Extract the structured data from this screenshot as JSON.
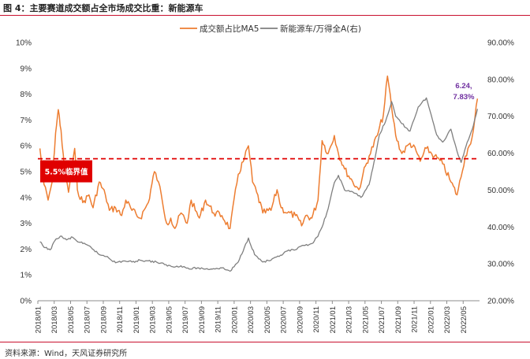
{
  "title": "图 4：主要赛道成交额占全市场成交比重：新能源车",
  "source": "资料来源：Wind，天风证券研究所",
  "chart_data": {
    "type": "line",
    "legend": [
      "成交额占比MA5",
      "新能源车/万得全A(右)"
    ],
    "colors": {
      "turnover_share": "#ed7d31",
      "nev_ratio": "#7f7f7f",
      "threshold": "#e00000",
      "annotation": "#7030a0"
    },
    "y_left": {
      "min": 0,
      "max": 10,
      "ticks": [
        "0%",
        "1%",
        "2%",
        "3%",
        "4%",
        "5%",
        "6%",
        "7%",
        "8%",
        "9%",
        "10%"
      ]
    },
    "y_right": {
      "min": 20,
      "max": 90,
      "ticks": [
        "20.00%",
        "30.00%",
        "40.00%",
        "50.00%",
        "60.00%",
        "70.00%",
        "80.00%",
        "90.00%"
      ]
    },
    "x_ticks": [
      "2018/01",
      "2018/03",
      "2018/05",
      "2018/07",
      "2018/09",
      "2018/11",
      "2019/01",
      "2019/03",
      "2019/05",
      "2019/07",
      "2019/09",
      "2019/11",
      "2020/01",
      "2020/03",
      "2020/05",
      "2020/07",
      "2020/09",
      "2020/11",
      "2021/01",
      "2021/03",
      "2021/05",
      "2021/07",
      "2021/09",
      "2021/11",
      "2022/01",
      "2022/03",
      "2022/05"
    ],
    "threshold": {
      "value": 5.5,
      "label": "5.5%临界值"
    },
    "annotation": {
      "line1": "6.24,",
      "line2": "7.83%"
    },
    "series": [
      {
        "name": "成交额占比MA5",
        "axis": "left",
        "points": [
          [
            "2018/01",
            5.9
          ],
          [
            "2018/01",
            4.5
          ],
          [
            "2018/02",
            3.9
          ],
          [
            "2018/02",
            4.6
          ],
          [
            "2018/03",
            6.5
          ],
          [
            "2018/03",
            7.4
          ],
          [
            "2018/03",
            6.6
          ],
          [
            "2018/04",
            5.0
          ],
          [
            "2018/04",
            4.2
          ],
          [
            "2018/05",
            5.2
          ],
          [
            "2018/05",
            5.9
          ],
          [
            "2018/05",
            4.3
          ],
          [
            "2018/06",
            3.8
          ],
          [
            "2018/07",
            4.1
          ],
          [
            "2018/07",
            3.6
          ],
          [
            "2018/08",
            4.6
          ],
          [
            "2018/09",
            4.1
          ],
          [
            "2018/09",
            3.5
          ],
          [
            "2018/10",
            3.6
          ],
          [
            "2018/11",
            3.3
          ],
          [
            "2018/11",
            3.9
          ],
          [
            "2018/12",
            3.5
          ],
          [
            "2019/01",
            3.2
          ],
          [
            "2019/02",
            3.8
          ],
          [
            "2019/03",
            5.0
          ],
          [
            "2019/03",
            4.6
          ],
          [
            "2019/04",
            3.8
          ],
          [
            "2019/04",
            3.0
          ],
          [
            "2019/05",
            3.2
          ],
          [
            "2019/05",
            2.8
          ],
          [
            "2019/06",
            3.4
          ],
          [
            "2019/07",
            3.0
          ],
          [
            "2019/07",
            3.9
          ],
          [
            "2019/08",
            3.5
          ],
          [
            "2019/08",
            3.2
          ],
          [
            "2019/09",
            3.9
          ],
          [
            "2019/10",
            3.4
          ],
          [
            "2019/11",
            3.3
          ],
          [
            "2019/12",
            2.8
          ],
          [
            "2020/01",
            4.9
          ],
          [
            "2020/02",
            5.5
          ],
          [
            "2020/02",
            6.0
          ],
          [
            "2020/03",
            4.6
          ],
          [
            "2020/03",
            4.2
          ],
          [
            "2020/04",
            3.4
          ],
          [
            "2020/05",
            3.5
          ],
          [
            "2020/06",
            4.3
          ],
          [
            "2020/06",
            3.6
          ],
          [
            "2020/07",
            3.4
          ],
          [
            "2020/08",
            3.3
          ],
          [
            "2020/09",
            2.9
          ],
          [
            "2020/09",
            3.3
          ],
          [
            "2020/10",
            3.2
          ],
          [
            "2020/11",
            3.9
          ],
          [
            "2020/11",
            6.2
          ],
          [
            "2020/12",
            5.7
          ],
          [
            "2021/01",
            6.4
          ],
          [
            "2021/01",
            5.7
          ],
          [
            "2021/02",
            5.1
          ],
          [
            "2021/03",
            4.6
          ],
          [
            "2021/04",
            4.3
          ],
          [
            "2021/04",
            4.9
          ],
          [
            "2021/05",
            5.6
          ],
          [
            "2021/06",
            6.4
          ],
          [
            "2021/07",
            7.2
          ],
          [
            "2021/07",
            8.7
          ],
          [
            "2021/08",
            7.5
          ],
          [
            "2021/08",
            6.4
          ],
          [
            "2021/09",
            5.7
          ],
          [
            "2021/10",
            6.1
          ],
          [
            "2021/11",
            5.8
          ],
          [
            "2021/11",
            5.4
          ],
          [
            "2021/12",
            5.9
          ],
          [
            "2022/01",
            5.6
          ],
          [
            "2022/02",
            5.3
          ],
          [
            "2022/03",
            4.6
          ],
          [
            "2022/04",
            4.1
          ],
          [
            "2022/04",
            4.8
          ],
          [
            "2022/05",
            5.6
          ],
          [
            "2022/05",
            6.0
          ],
          [
            "2022/06",
            6.6
          ],
          [
            "2022/06",
            7.83
          ]
        ]
      },
      {
        "name": "新能源车/万得全A(右)",
        "axis": "right",
        "points": [
          [
            "2018/01",
            36.0
          ],
          [
            "2018/01",
            34.5
          ],
          [
            "2018/02",
            33.8
          ],
          [
            "2018/03",
            36.8
          ],
          [
            "2018/03",
            37.5
          ],
          [
            "2018/04",
            36.5
          ],
          [
            "2018/05",
            37.2
          ],
          [
            "2018/05",
            36.2
          ],
          [
            "2018/06",
            35.5
          ],
          [
            "2018/07",
            34.5
          ],
          [
            "2018/08",
            32.5
          ],
          [
            "2018/09",
            32.0
          ],
          [
            "2018/10",
            30.3
          ],
          [
            "2018/11",
            30.8
          ],
          [
            "2018/12",
            30.5
          ],
          [
            "2019/01",
            31.0
          ],
          [
            "2019/02",
            30.8
          ],
          [
            "2019/03",
            30.5
          ],
          [
            "2019/04",
            29.8
          ],
          [
            "2019/05",
            29.2
          ],
          [
            "2019/06",
            29.5
          ],
          [
            "2019/07",
            28.6
          ],
          [
            "2019/08",
            28.9
          ],
          [
            "2019/09",
            28.6
          ],
          [
            "2019/10",
            28.7
          ],
          [
            "2019/11",
            28.9
          ],
          [
            "2019/12",
            28.0
          ],
          [
            "2020/01",
            30.5
          ],
          [
            "2020/02",
            34.5
          ],
          [
            "2020/02",
            37.0
          ],
          [
            "2020/03",
            32.5
          ],
          [
            "2020/04",
            30.5
          ],
          [
            "2020/05",
            31.0
          ],
          [
            "2020/06",
            32.0
          ],
          [
            "2020/07",
            33.5
          ],
          [
            "2020/08",
            33.8
          ],
          [
            "2020/09",
            35.0
          ],
          [
            "2020/10",
            35.5
          ],
          [
            "2020/11",
            37.5
          ],
          [
            "2020/11",
            40.0
          ],
          [
            "2020/12",
            45.0
          ],
          [
            "2021/01",
            52.0
          ],
          [
            "2021/01",
            54.0
          ],
          [
            "2021/02",
            50.0
          ],
          [
            "2021/03",
            49.5
          ],
          [
            "2021/04",
            48.0
          ],
          [
            "2021/05",
            51.5
          ],
          [
            "2021/06",
            59.0
          ],
          [
            "2021/06",
            65.0
          ],
          [
            "2021/07",
            68.5
          ],
          [
            "2021/08",
            74.0
          ],
          [
            "2021/08",
            70.0
          ],
          [
            "2021/09",
            68.0
          ],
          [
            "2021/10",
            66.0
          ],
          [
            "2021/11",
            72.5
          ],
          [
            "2021/12",
            75.0
          ],
          [
            "2022/01",
            69.0
          ],
          [
            "2022/01",
            65.0
          ],
          [
            "2022/02",
            63.0
          ],
          [
            "2022/03",
            66.5
          ],
          [
            "2022/04",
            60.5
          ],
          [
            "2022/04",
            57.5
          ],
          [
            "2022/05",
            63.0
          ],
          [
            "2022/06",
            67.5
          ],
          [
            "2022/06",
            72.0
          ]
        ]
      }
    ]
  }
}
